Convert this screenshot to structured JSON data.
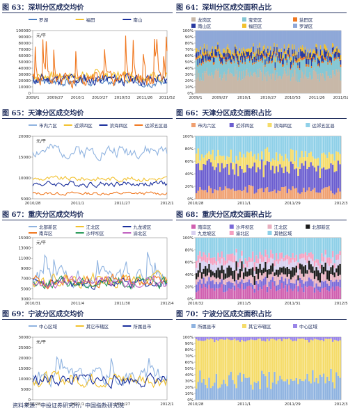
{
  "source": "资料来源：中投证券研究所，中国指数研究院",
  "chart_data": [
    {
      "id": "f63",
      "title": "图 63：深圳分区成交均价",
      "type": "line",
      "unit": "元/平",
      "ylim": [
        0,
        100000
      ],
      "yticks": [
        "0",
        "10000",
        "20000",
        "30000",
        "40000",
        "50000",
        "60000",
        "70000",
        "80000",
        "90000",
        "100000"
      ],
      "xticks": [
        "2009/1",
        "2009/27",
        "2010/1",
        "2010/27",
        "2010/53",
        "2011/26",
        "2011/52"
      ],
      "n": 160,
      "series": [
        {
          "name": "罗湖",
          "color": "#4a7ec2",
          "base": 18000,
          "amp": 6000,
          "seed": 3
        },
        {
          "name": "福田",
          "color": "#f2c12e",
          "base": 28000,
          "amp": 8000,
          "seed": 7
        },
        {
          "name": "南山",
          "color": "#1a2f9c",
          "base": 22000,
          "amp": 9000,
          "seed": 11
        },
        {
          "name": "",
          "color": "#f07820",
          "base": 20000,
          "amp": 12000,
          "seed": 5,
          "spike": 95000
        }
      ]
    },
    {
      "id": "f64",
      "title": "图 64：深圳分区成交面积占比",
      "type": "area",
      "ylim": [
        0,
        100
      ],
      "yticks": [
        "0%",
        "10%",
        "20%",
        "30%",
        "40%",
        "50%",
        "60%",
        "70%",
        "80%",
        "90%",
        "100%"
      ],
      "xticks": [
        "2009/1",
        "2009/27",
        "2010/1",
        "2010/27",
        "2010/53",
        "2011/26",
        "2011/52"
      ],
      "n": 160,
      "series": [
        {
          "name": "龙岗区",
          "color": "#c8b8a8",
          "share": 30
        },
        {
          "name": "宝安区",
          "color": "#86c7d4",
          "share": 22
        },
        {
          "name": "盐田区",
          "color": "#f07820",
          "share": 3
        },
        {
          "name": "南山区",
          "color": "#2a3aa0",
          "share": 8
        },
        {
          "name": "福田区",
          "color": "#f2c12e",
          "share": 6
        },
        {
          "name": "罗湖区",
          "color": "#8fa8d8",
          "share": 31
        }
      ]
    },
    {
      "id": "f65",
      "title": "图 65：天津分区成交均价",
      "type": "line",
      "unit": "元/平",
      "ylim": [
        5000,
        20000
      ],
      "yticks": [
        "5000",
        "10000",
        "15000",
        "20000"
      ],
      "xticks": [
        "2010/28",
        "2011/1",
        "2011/27",
        "2012/1"
      ],
      "n": 100,
      "series": [
        {
          "name": "市内六区",
          "color": "#8fb3e0",
          "base": 16500,
          "amp": 1600,
          "seed": 2
        },
        {
          "name": "近郊四区",
          "color": "#f2c12e",
          "base": 9800,
          "amp": 600,
          "seed": 9
        },
        {
          "name": "滨海四区",
          "color": "#1a2f9c",
          "base": 8600,
          "amp": 700,
          "seed": 4
        },
        {
          "name": "远郊五区县",
          "color": "#f07820",
          "base": 6300,
          "amp": 400,
          "seed": 13
        }
      ]
    },
    {
      "id": "f66",
      "title": "图 66：天津分区成交面积占比",
      "type": "bar",
      "ylim": [
        0,
        100
      ],
      "yticks": [
        "0%",
        "20%",
        "40%",
        "60%",
        "80%",
        "100%"
      ],
      "xticks": [
        "2010/28",
        "2011/1",
        "2011/29",
        "2012/3"
      ],
      "n": 80,
      "series": [
        {
          "name": "市内六区",
          "color": "#f0a070",
          "share": 14
        },
        {
          "name": "近郊四区",
          "color": "#6b5ed0",
          "share": 36
        },
        {
          "name": "滨海四区",
          "color": "#f5dc6a",
          "share": 18
        },
        {
          "name": "远郊五区县",
          "color": "#8fd0e8",
          "share": 32
        }
      ]
    },
    {
      "id": "f67",
      "title": "图 67：重庆分区成交均价",
      "type": "line",
      "unit": "元/平",
      "ylim": [
        3000,
        15000
      ],
      "yticks": [
        "3000",
        "5000",
        "7000",
        "9000",
        "11000",
        "13000",
        "15000"
      ],
      "xticks": [
        "2010/31",
        "2011/4",
        "2011/30",
        "2012/4"
      ],
      "n": 90,
      "series": [
        {
          "name": "北部新区",
          "color": "#8fb3e0",
          "base": 7500,
          "amp": 1800,
          "seed": 21,
          "spike": 12500
        },
        {
          "name": "江北区",
          "color": "#f2c12e",
          "base": 6800,
          "amp": 1300,
          "seed": 22
        },
        {
          "name": "九龙坡区",
          "color": "#1a2f9c",
          "base": 6000,
          "amp": 1000,
          "seed": 23
        },
        {
          "name": "南岸区",
          "color": "#f07820",
          "base": 6500,
          "amp": 1200,
          "seed": 24
        },
        {
          "name": "沙坪坝区",
          "color": "#2a9a5a",
          "base": 6200,
          "amp": 1100,
          "seed": 25
        },
        {
          "name": "渝北区",
          "color": "#c060c0",
          "base": 6300,
          "amp": 1100,
          "seed": 26
        }
      ]
    },
    {
      "id": "f68",
      "title": "图 68：重庆分区成交面积占比",
      "type": "bar",
      "ylim": [
        0,
        100
      ],
      "yticks": [
        "0%",
        "20%",
        "40%",
        "60%",
        "80%",
        "100%"
      ],
      "xticks": [
        "2010/32",
        "2011/5",
        "2011/31",
        "2012/5"
      ],
      "n": 80,
      "series": [
        {
          "name": "南岸区",
          "color": "#d060b0",
          "share": 18
        },
        {
          "name": "沙坪坝区",
          "color": "#7a6ad8",
          "share": 10
        },
        {
          "name": "江北区",
          "color": "#e8b0c0",
          "share": 10
        },
        {
          "name": "北部新区",
          "color": "#1a1a1a",
          "share": 12
        },
        {
          "name": "九龙坡区",
          "color": "#d8d0f0",
          "share": 10
        },
        {
          "name": "渝北区",
          "color": "#f5a0c0",
          "share": 10
        },
        {
          "name": "其他区域",
          "color": "#8fd0e8",
          "share": 30
        }
      ]
    },
    {
      "id": "f69",
      "title": "图 69：宁波分区成交均价",
      "type": "line",
      "unit": "元/平",
      "ylim": [
        0,
        30000
      ],
      "yticks": [
        "0",
        "5000",
        "10000",
        "15000",
        "20000",
        "25000",
        "30000"
      ],
      "xticks": [
        "2010/28",
        "2011/1",
        "2011/27",
        "2012/1"
      ],
      "n": 90,
      "series": [
        {
          "name": "中心区域",
          "color": "#8fb3e0",
          "base": 11000,
          "amp": 4000,
          "seed": 31,
          "spike": 25000
        },
        {
          "name": "其它市辖区",
          "color": "#f2c12e",
          "base": 10000,
          "amp": 3500,
          "seed": 32
        },
        {
          "name": "所属县市",
          "color": "#1a2f9c",
          "base": 9500,
          "amp": 3000,
          "seed": 33
        }
      ]
    },
    {
      "id": "f70",
      "title": "图 70：宁波分区成交面积占比",
      "type": "bar",
      "ylim": [
        0,
        100
      ],
      "yticks": [
        "0%",
        "10%",
        "20%",
        "30%",
        "40%",
        "50%",
        "60%",
        "70%",
        "80%",
        "90%",
        "100%"
      ],
      "xticks": [
        "2010/28",
        "2011/1",
        "2011/29",
        "2012/3"
      ],
      "n": 80,
      "series": [
        {
          "name": "所属县市",
          "color": "#8fb3e0",
          "share": 30
        },
        {
          "name": "其它市辖区",
          "color": "#f5dc6a",
          "share": 66
        },
        {
          "name": "中心区域",
          "color": "#9a86e8",
          "share": 4
        }
      ]
    }
  ]
}
